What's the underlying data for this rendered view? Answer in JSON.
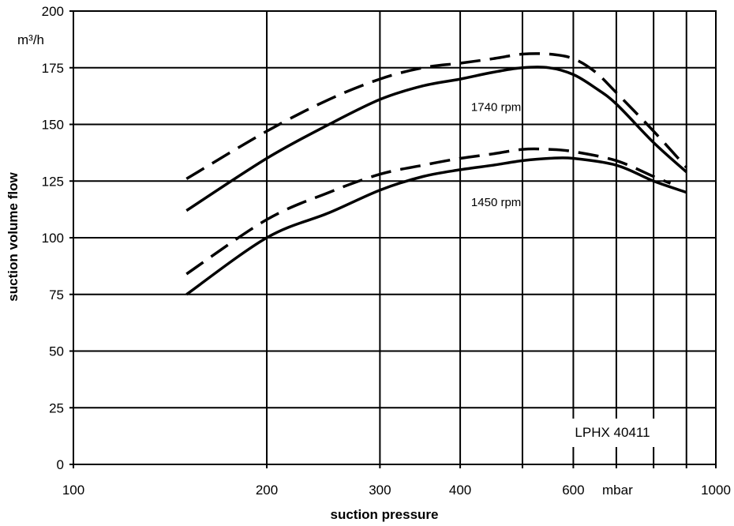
{
  "chart_data": {
    "type": "line",
    "title": "",
    "xlabel": "suction pressure",
    "ylabel": "suction volume flow",
    "y_unit": "m³/h",
    "x_unit": "mbar",
    "x_scale": "log",
    "xlim": [
      100,
      1000
    ],
    "ylim": [
      0,
      200
    ],
    "grid": true,
    "x_ticks": [
      {
        "value": 100,
        "label": "100"
      },
      {
        "value": 200,
        "label": "200"
      },
      {
        "value": 300,
        "label": "300"
      },
      {
        "value": 400,
        "label": "400"
      },
      {
        "value": 600,
        "label": "600"
      },
      {
        "value": 1000,
        "label": "1000"
      }
    ],
    "x_gridlines": [
      100,
      200,
      300,
      400,
      500,
      600,
      700,
      800,
      900,
      1000
    ],
    "y_ticks": [
      0,
      25,
      50,
      75,
      100,
      125,
      150,
      175,
      200
    ],
    "annotations": [
      {
        "text": "1740 rpm",
        "x": 455,
        "y": 156
      },
      {
        "text": "1450 rpm",
        "x": 455,
        "y": 114
      }
    ],
    "model_label": "LPHX 40411",
    "series": [
      {
        "style": "solid",
        "x": [
          150,
          200,
          250,
          300,
          350,
          400,
          450,
          500,
          550,
          600,
          650,
          700,
          800,
          900
        ],
        "y": [
          112,
          135,
          150,
          161,
          167,
          170,
          173,
          175,
          175,
          172,
          166,
          159,
          142,
          129
        ]
      },
      {
        "style": "dashed",
        "x": [
          150,
          200,
          250,
          300,
          350,
          400,
          450,
          500,
          550,
          600,
          650,
          700,
          800,
          900
        ],
        "y": [
          126,
          147,
          161,
          170,
          175,
          177,
          179,
          181,
          181,
          179,
          173,
          164,
          147,
          131
        ]
      },
      {
        "style": "solid",
        "x": [
          150,
          200,
          250,
          300,
          350,
          400,
          450,
          500,
          550,
          600,
          700,
          800,
          900
        ],
        "y": [
          75,
          100,
          111,
          121,
          127,
          130,
          132,
          134,
          135,
          135,
          132,
          125,
          120
        ]
      },
      {
        "style": "dashed",
        "x": [
          150,
          200,
          250,
          300,
          350,
          400,
          450,
          500,
          550,
          600,
          700,
          800,
          850
        ],
        "y": [
          84,
          108,
          120,
          128,
          132,
          135,
          137,
          139,
          139,
          138,
          134,
          127,
          124
        ]
      }
    ]
  }
}
